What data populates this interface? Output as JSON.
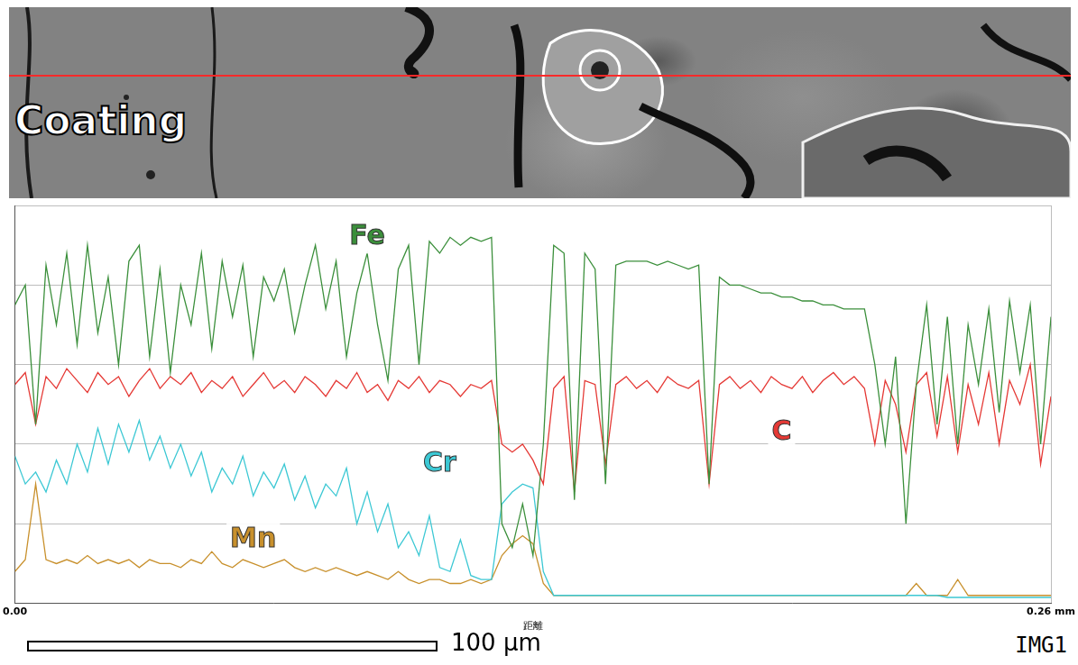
{
  "chart_data": {
    "type": "line",
    "x_label": "距離",
    "x": [
      0,
      0.0026,
      0.0052,
      0.0078,
      0.0104,
      0.013,
      0.0156,
      0.0182,
      0.0208,
      0.0234,
      0.026,
      0.0286,
      0.0312,
      0.0338,
      0.0364,
      0.039,
      0.0416,
      0.0442,
      0.0468,
      0.0494,
      0.052,
      0.0546,
      0.0572,
      0.0598,
      0.0624,
      0.065,
      0.0676,
      0.0702,
      0.0728,
      0.0754,
      0.078,
      0.0806,
      0.0832,
      0.0858,
      0.0884,
      0.091,
      0.0936,
      0.0962,
      0.0988,
      0.1014,
      0.104,
      0.1066,
      0.1092,
      0.1118,
      0.1144,
      0.117,
      0.1196,
      0.1222,
      0.1248,
      0.1274,
      0.13,
      0.1326,
      0.1352,
      0.1378,
      0.1404,
      0.143,
      0.1456,
      0.1482,
      0.1508,
      0.1534,
      0.156,
      0.1586,
      0.1612,
      0.1638,
      0.1664,
      0.169,
      0.1716,
      0.1742,
      0.1768,
      0.1794,
      0.182,
      0.1846,
      0.1872,
      0.1898,
      0.1924,
      0.195,
      0.1976,
      0.2002,
      0.2028,
      0.2054,
      0.208,
      0.2106,
      0.2132,
      0.2158,
      0.2184,
      0.221,
      0.2236,
      0.2262,
      0.2288,
      0.2314,
      0.234,
      0.2366,
      0.2392,
      0.2418,
      0.2444,
      0.247,
      0.2496,
      0.2522,
      0.2548,
      0.2574,
      0.26
    ],
    "series": [
      {
        "name": "Fe",
        "color": "#3b8f3b",
        "values": [
          75,
          80,
          45,
          85,
          70,
          88,
          65,
          90,
          68,
          82,
          60,
          86,
          90,
          62,
          84,
          58,
          80,
          70,
          88,
          64,
          86,
          72,
          85,
          62,
          82,
          76,
          84,
          68,
          80,
          90,
          74,
          86,
          62,
          78,
          88,
          70,
          56,
          84,
          90,
          60,
          91,
          88,
          92,
          90,
          92,
          91,
          92,
          20,
          14,
          25,
          12,
          40,
          90,
          88,
          26,
          88,
          84,
          30,
          85,
          86,
          86,
          86,
          85,
          86,
          85,
          84,
          85,
          30,
          82,
          80,
          80,
          79,
          78,
          78,
          77,
          77,
          76,
          76,
          75,
          75,
          74,
          74,
          74,
          60,
          40,
          62,
          20,
          55,
          75,
          45,
          72,
          40,
          70,
          55,
          74,
          48,
          76,
          58,
          75,
          40,
          72
        ]
      },
      {
        "name": "C",
        "color": "#e53935",
        "values": [
          55,
          58,
          45,
          57,
          54,
          59,
          56,
          53,
          58,
          55,
          57,
          52,
          56,
          59,
          54,
          57,
          55,
          58,
          53,
          56,
          54,
          57,
          52,
          55,
          58,
          54,
          56,
          53,
          57,
          55,
          52,
          56,
          54,
          58,
          53,
          55,
          51,
          56,
          54,
          57,
          53,
          56,
          55,
          52,
          55,
          54,
          56,
          40,
          38,
          40,
          36,
          30,
          54,
          57,
          28,
          56,
          55,
          35,
          55,
          57,
          54,
          56,
          53,
          57,
          55,
          54,
          56,
          30,
          55,
          57,
          54,
          56,
          53,
          57,
          55,
          54,
          57,
          53,
          56,
          58,
          55,
          57,
          54,
          40,
          56,
          50,
          38,
          55,
          58,
          42,
          57,
          38,
          55,
          45,
          58,
          40,
          56,
          50,
          60,
          35,
          52
        ]
      },
      {
        "name": "Cr",
        "color": "#3cc8d4",
        "values": [
          37,
          30,
          33,
          28,
          36,
          30,
          40,
          33,
          44,
          35,
          45,
          38,
          46,
          36,
          42,
          34,
          40,
          32,
          38,
          28,
          34,
          30,
          37,
          27,
          33,
          29,
          35,
          26,
          32,
          24,
          30,
          27,
          34,
          20,
          28,
          18,
          25,
          14,
          18,
          12,
          22,
          9,
          8,
          16,
          7,
          6,
          6,
          25,
          28,
          30,
          29,
          8,
          2,
          2,
          2,
          2,
          2,
          2,
          2,
          2,
          2,
          2,
          2,
          2,
          2,
          2,
          2,
          2,
          2,
          2,
          2,
          2,
          2,
          2,
          2,
          2,
          2,
          2,
          2,
          2,
          2,
          2,
          2,
          2,
          2,
          2,
          2,
          2,
          2,
          2,
          1.5,
          1.5,
          1.5,
          1.5,
          1.5,
          1.5,
          1.5,
          1.5,
          1.5,
          1.5,
          1.5
        ]
      },
      {
        "name": "Mn",
        "color": "#c8902c",
        "values": [
          8,
          11,
          30,
          11,
          10,
          11,
          10,
          12,
          10,
          11,
          10,
          11,
          9,
          11,
          10,
          10,
          9,
          11,
          10,
          13,
          10,
          9,
          11,
          10,
          9,
          10,
          11,
          9,
          8,
          9,
          8,
          9,
          8,
          7,
          8,
          7,
          6,
          8,
          6,
          5,
          6,
          6,
          5,
          5,
          6,
          5,
          6,
          12,
          15,
          17,
          15,
          5,
          2,
          2,
          2,
          2,
          2,
          2,
          2,
          2,
          2,
          2,
          2,
          2,
          2,
          2,
          2,
          2,
          2,
          2,
          2,
          2,
          2,
          2,
          2,
          2,
          2,
          2,
          2,
          2,
          2,
          2,
          2,
          2,
          2,
          2,
          2,
          5,
          2,
          2,
          2,
          6,
          2,
          2,
          2,
          2,
          2,
          2,
          2,
          2,
          2
        ]
      }
    ],
    "xlim": [
      0,
      0.26
    ],
    "xticks": [
      {
        "value": 0,
        "label": "0.00"
      },
      {
        "value": 0.26,
        "label": "0.26 mm"
      }
    ],
    "ylim": [
      0,
      100
    ],
    "yticks": [
      0,
      20,
      40,
      60,
      80,
      100
    ],
    "tick_labels": "x",
    "grid": true
  },
  "micrograph": {
    "label": "Coating",
    "scale_bar": "100 μm",
    "id": "IMG1"
  }
}
